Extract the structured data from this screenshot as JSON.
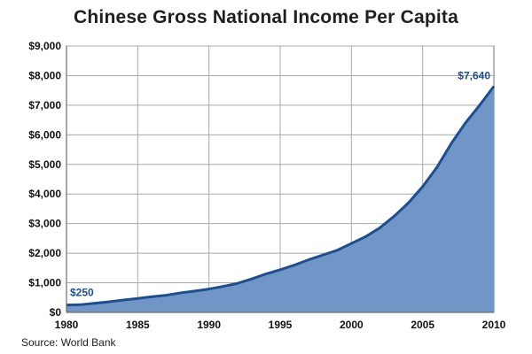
{
  "title": "Chinese Gross National Income Per Capita",
  "source": "Source: World Bank",
  "colors": {
    "area_fill": "#6f96c6",
    "line": "#1f4e8c",
    "grid": "#a9a9a9",
    "axis": "#6f6f6f",
    "label_text": "#1f4e8c"
  },
  "chart_data": {
    "type": "area",
    "title": "Chinese Gross National Income Per Capita",
    "xlabel": "",
    "ylabel": "",
    "xlim": [
      1980,
      2010
    ],
    "ylim": [
      0,
      9000
    ],
    "grid": true,
    "x_ticks": [
      1980,
      1985,
      1990,
      1995,
      2000,
      2005,
      2010
    ],
    "y_ticks": [
      0,
      1000,
      2000,
      3000,
      4000,
      5000,
      6000,
      7000,
      8000,
      9000
    ],
    "y_tick_labels": [
      "$0",
      "$1,000",
      "$2,000",
      "$3,000",
      "$4,000",
      "$5,000",
      "$6,000",
      "$7,000",
      "$8,000",
      "$9,000"
    ],
    "series": [
      {
        "x": [
          1980,
          1981,
          1982,
          1983,
          1984,
          1985,
          1986,
          1987,
          1988,
          1989,
          1990,
          1991,
          1992,
          1993,
          1994,
          1995,
          1996,
          1997,
          1998,
          1999,
          2000,
          2001,
          2002,
          2003,
          2004,
          2005,
          2006,
          2007,
          2008,
          2009,
          2010
        ],
        "values": [
          250,
          260,
          310,
          360,
          420,
          470,
          530,
          580,
          660,
          720,
          790,
          880,
          980,
          1130,
          1300,
          1440,
          1600,
          1780,
          1940,
          2100,
          2330,
          2560,
          2860,
          3250,
          3700,
          4250,
          4900,
          5700,
          6400,
          7000,
          7640
        ]
      }
    ],
    "annotations": [
      {
        "text": "$250",
        "x": 1980,
        "y": 250
      },
      {
        "text": "$7,640",
        "x": 2010,
        "y": 7640
      }
    ]
  }
}
